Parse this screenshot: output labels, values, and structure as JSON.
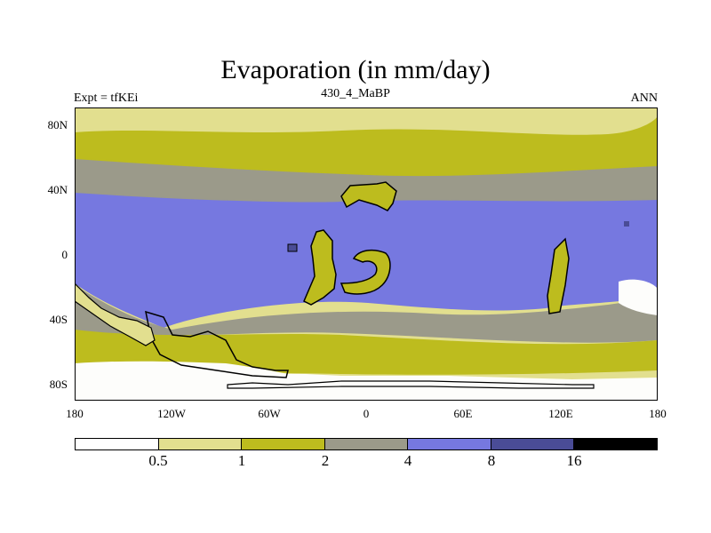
{
  "title": "Evaporation (in mm/day)",
  "left_subtitle": "Expt = tfKEi",
  "center_subtitle": "430_4_MaBP",
  "right_subtitle": "ANN",
  "y_ticks": [
    "80N",
    "40N",
    "0",
    "40S",
    "80S"
  ],
  "x_ticks": [
    "180",
    "120W",
    "60W",
    "0",
    "60E",
    "120E",
    "180"
  ],
  "colorbar": {
    "colors": [
      "#ffffff",
      "#e2df8f",
      "#bdbc1e",
      "#9b9a8a",
      "#7678e0",
      "#4a4c96",
      "#000000"
    ],
    "labels": [
      "0.5",
      "1",
      "2",
      "4",
      "8",
      "16"
    ]
  },
  "palette": {
    "white": "#fdfdfb",
    "light_yellow": "#e2df8f",
    "olive": "#bdbc1e",
    "gray": "#9b9a8a",
    "blue": "#7678e0",
    "dark_blue": "#4a4c96",
    "land_outline": "#000000"
  }
}
